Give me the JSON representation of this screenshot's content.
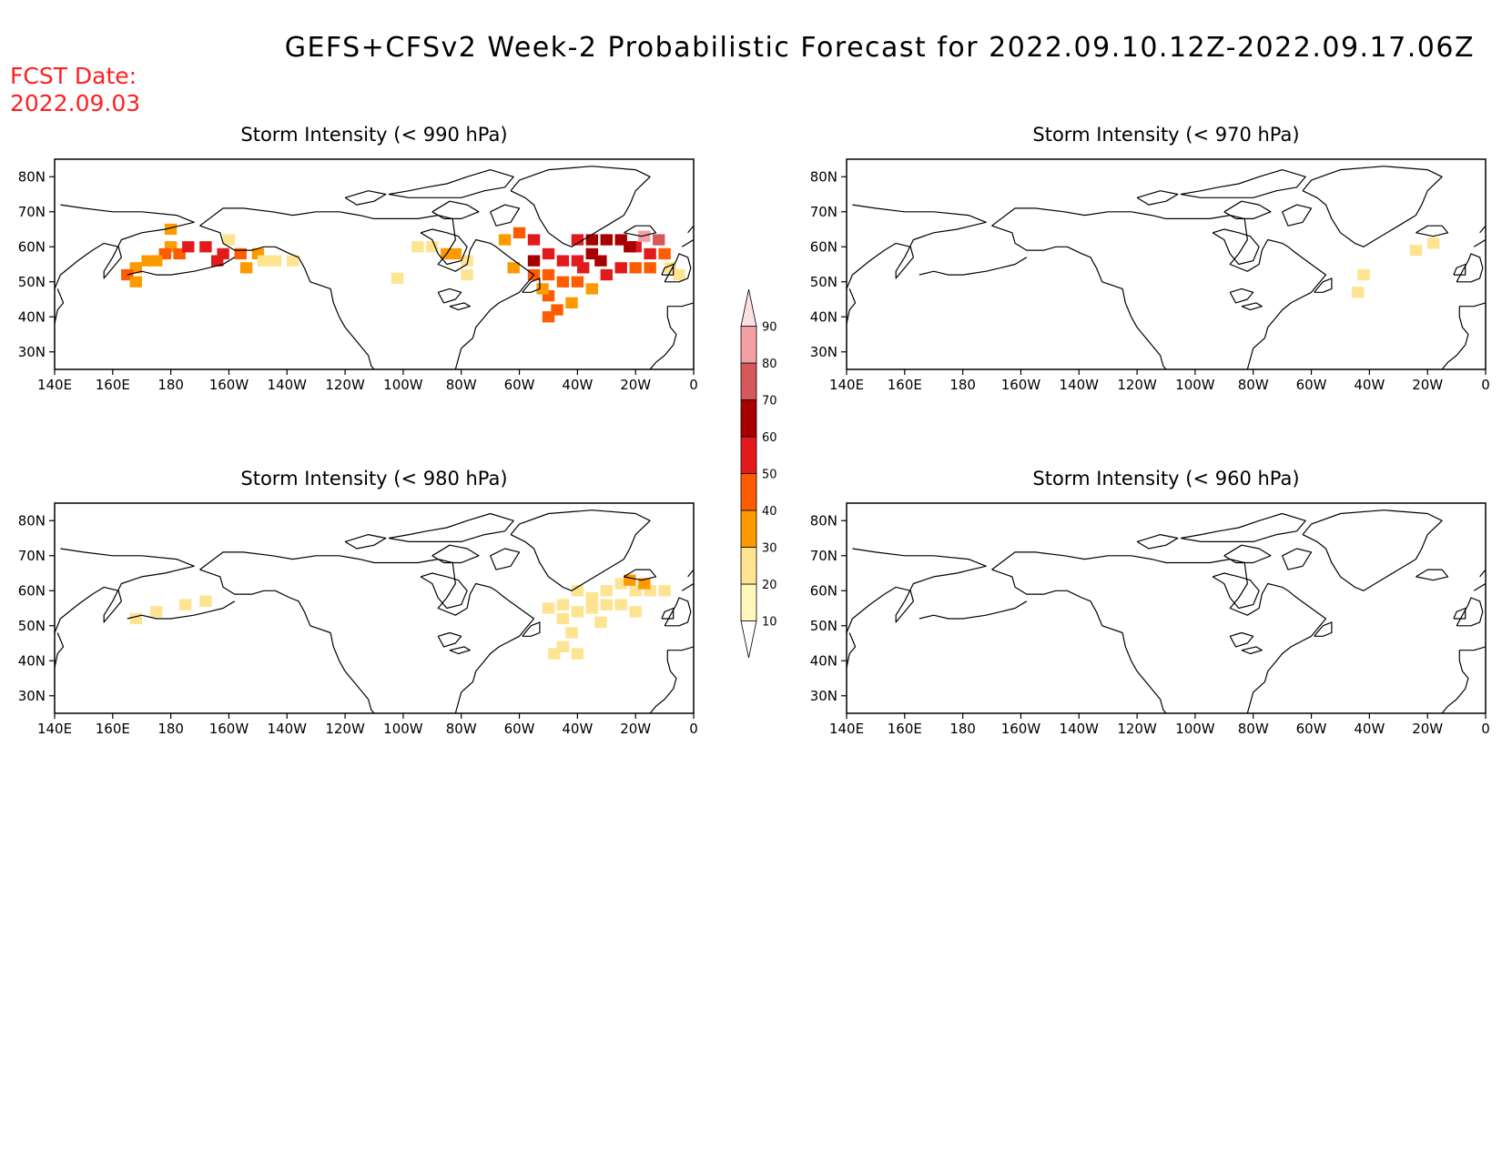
{
  "header": {
    "title": "GEFS+CFSv2 Week-2 Probabilistic Forecast for 2022.09.10.12Z-2022.09.17.06Z",
    "fcst_label": "FCST Date:",
    "fcst_date": "2022.09.03",
    "fcst_color": "#ff2020"
  },
  "axes": {
    "lon_ticks": [
      "140E",
      "160E",
      "180",
      "160W",
      "140W",
      "120W",
      "100W",
      "80W",
      "60W",
      "40W",
      "20W",
      "0"
    ],
    "lon_values": [
      140,
      160,
      180,
      200,
      220,
      240,
      260,
      280,
      300,
      320,
      340,
      360
    ],
    "lat_ticks": [
      "80N",
      "70N",
      "60N",
      "50N",
      "40N",
      "30N"
    ],
    "lat_values": [
      80,
      70,
      60,
      50,
      40,
      30
    ],
    "lon_range": [
      140,
      360
    ],
    "lat_range": [
      25,
      85
    ]
  },
  "colorbar": {
    "labels": [
      "10",
      "20",
      "30",
      "40",
      "50",
      "60",
      "70",
      "80",
      "90"
    ],
    "colors": [
      "#fff7bc",
      "#fee391",
      "#fe9a00",
      "#fd5c00",
      "#e31a1c",
      "#a80000",
      "#d6585a",
      "#f2a0a4",
      "#fde0e2"
    ]
  },
  "panels": [
    {
      "id": "990",
      "title": "Storm Intensity (< 990 hPa)",
      "cells": [
        [
          180,
          65,
          2
        ],
        [
          180,
          60,
          2
        ],
        [
          183,
          58,
          3
        ],
        [
          178,
          58,
          3
        ],
        [
          175,
          56,
          2
        ],
        [
          172,
          56,
          2
        ],
        [
          168,
          54,
          2
        ],
        [
          165,
          52,
          3
        ],
        [
          168,
          50,
          2
        ],
        [
          186,
          60,
          4
        ],
        [
          192,
          60,
          4
        ],
        [
          198,
          58,
          4
        ],
        [
          204,
          58,
          3
        ],
        [
          210,
          58,
          2
        ],
        [
          200,
          62,
          1
        ],
        [
          212,
          56,
          1
        ],
        [
          216,
          56,
          1
        ],
        [
          222,
          56,
          1
        ],
        [
          206,
          54,
          2
        ],
        [
          196,
          56,
          4
        ],
        [
          270,
          60,
          1
        ],
        [
          275,
          58,
          2
        ],
        [
          278,
          58,
          2
        ],
        [
          282,
          56,
          1
        ],
        [
          282,
          52,
          1
        ],
        [
          265,
          60,
          1
        ],
        [
          258,
          51,
          1
        ],
        [
          300,
          64,
          3
        ],
        [
          295,
          62,
          2
        ],
        [
          298,
          54,
          2
        ],
        [
          305,
          62,
          4
        ],
        [
          305,
          56,
          5
        ],
        [
          310,
          58,
          4
        ],
        [
          315,
          56,
          4
        ],
        [
          320,
          56,
          4
        ],
        [
          325,
          58,
          5
        ],
        [
          330,
          62,
          5
        ],
        [
          335,
          62,
          5
        ],
        [
          340,
          60,
          4
        ],
        [
          345,
          58,
          4
        ],
        [
          350,
          58,
          3
        ],
        [
          348,
          62,
          6
        ],
        [
          343,
          63,
          7
        ],
        [
          338,
          60,
          5
        ],
        [
          325,
          62,
          5
        ],
        [
          320,
          62,
          4
        ],
        [
          310,
          52,
          3
        ],
        [
          315,
          50,
          3
        ],
        [
          320,
          50,
          3
        ],
        [
          325,
          48,
          2
        ],
        [
          330,
          52,
          4
        ],
        [
          335,
          54,
          4
        ],
        [
          340,
          54,
          3
        ],
        [
          345,
          54,
          3
        ],
        [
          310,
          46,
          3
        ],
        [
          313,
          42,
          3
        ],
        [
          310,
          40,
          3
        ],
        [
          318,
          44,
          2
        ],
        [
          305,
          52,
          3
        ],
        [
          308,
          48,
          2
        ],
        [
          322,
          54,
          4
        ],
        [
          328,
          56,
          5
        ],
        [
          352,
          54,
          1
        ],
        [
          355,
          52,
          1
        ]
      ]
    },
    {
      "id": "970",
      "title": "Storm Intensity (< 970 hPa)",
      "cells": [
        [
          342,
          61,
          1
        ],
        [
          336,
          59,
          1
        ],
        [
          318,
          52,
          1
        ],
        [
          316,
          47,
          1
        ]
      ]
    },
    {
      "id": "980",
      "title": "Storm Intensity (< 980 hPa)",
      "cells": [
        [
          168,
          52,
          1
        ],
        [
          175,
          54,
          1
        ],
        [
          185,
          56,
          1
        ],
        [
          192,
          57,
          1
        ],
        [
          320,
          60,
          1
        ],
        [
          325,
          58,
          1
        ],
        [
          330,
          60,
          1
        ],
        [
          335,
          62,
          1
        ],
        [
          340,
          60,
          1
        ],
        [
          345,
          60,
          1
        ],
        [
          315,
          56,
          1
        ],
        [
          320,
          54,
          1
        ],
        [
          325,
          55,
          1
        ],
        [
          330,
          56,
          1
        ],
        [
          335,
          56,
          1
        ],
        [
          340,
          54,
          1
        ],
        [
          315,
          52,
          1
        ],
        [
          318,
          48,
          1
        ],
        [
          315,
          44,
          1
        ],
        [
          320,
          42,
          1
        ],
        [
          312,
          42,
          1
        ],
        [
          310,
          55,
          1
        ],
        [
          338,
          63,
          2
        ],
        [
          343,
          62,
          2
        ],
        [
          350,
          60,
          1
        ],
        [
          328,
          51,
          1
        ]
      ]
    },
    {
      "id": "960",
      "title": "Storm Intensity (< 960 hPa)",
      "cells": []
    }
  ]
}
